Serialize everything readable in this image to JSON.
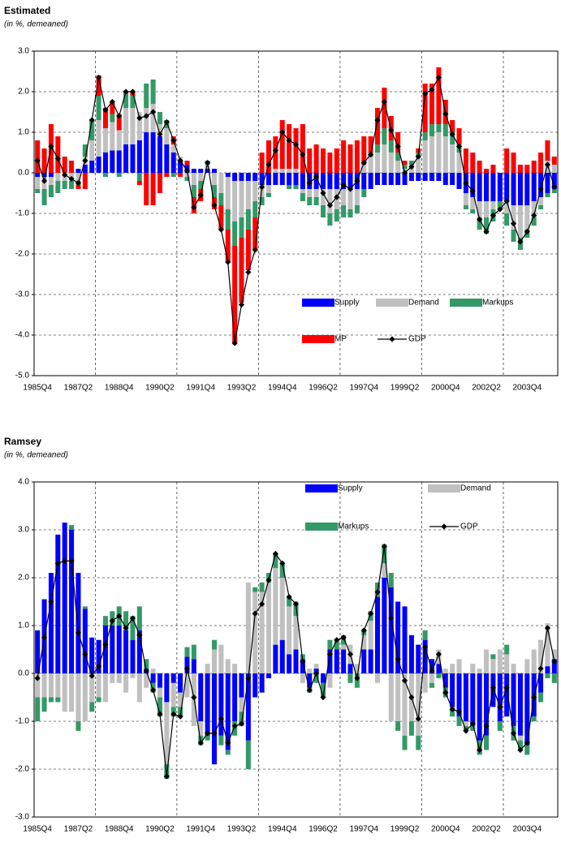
{
  "chart_data": [
    {
      "type": "bar",
      "stacked": true,
      "title": "Estimated",
      "subtitle": "(in %, demeaned)",
      "legend": "lower right",
      "grid": true,
      "categories": [
        "1985Q4",
        null,
        null,
        null,
        null,
        null,
        "1987Q2",
        null,
        null,
        null,
        null,
        null,
        "1988Q4",
        null,
        null,
        null,
        null,
        null,
        "1990Q2",
        null,
        null,
        null,
        null,
        null,
        "1991Q4",
        null,
        null,
        null,
        null,
        null,
        "1993Q2",
        null,
        null,
        null,
        null,
        null,
        "1994Q4",
        null,
        null,
        null,
        null,
        null,
        "1996Q2",
        null,
        null,
        null,
        null,
        null,
        "1997Q4",
        null,
        null,
        null,
        null,
        null,
        "1999Q2",
        null,
        null,
        null,
        null,
        null,
        "2000Q4",
        null,
        null,
        null,
        null,
        null,
        "2002Q2",
        null,
        null,
        null,
        null,
        null,
        "2003Q4",
        null,
        null,
        null,
        null
      ],
      "ylim": [
        -5,
        3
      ],
      "yticks": [
        {
          "value": -5,
          "label": "-5.0"
        },
        {
          "value": -4,
          "label": "-4.0"
        },
        {
          "value": -3,
          "label": "-3.0"
        },
        {
          "value": -2,
          "label": "-2.0"
        },
        {
          "value": -1,
          "label": "-1.0"
        },
        {
          "value": 0,
          "label": "0.0"
        },
        {
          "value": 1,
          "label": "1.0"
        },
        {
          "value": 2,
          "label": "2.0"
        },
        {
          "value": 3,
          "label": "3.0"
        }
      ],
      "series": [
        {
          "name": "Supply",
          "color": "#0000ff",
          "values": [
            -0.1,
            -0.1,
            -0.1,
            0,
            0,
            0,
            0.1,
            0.2,
            0.3,
            0.4,
            0.5,
            0.55,
            0.55,
            0.7,
            0.7,
            0.8,
            1.0,
            1.0,
            0.9,
            0.7,
            0.5,
            0.3,
            0.2,
            0.1,
            0.1,
            0.1,
            0.1,
            0,
            -0.1,
            -0.2,
            -0.2,
            -0.2,
            -0.2,
            -0.3,
            -0.3,
            -0.3,
            -0.3,
            -0.3,
            -0.3,
            -0.4,
            -0.4,
            -0.4,
            -0.4,
            -0.4,
            -0.4,
            -0.4,
            -0.4,
            -0.4,
            -0.4,
            -0.4,
            -0.3,
            -0.3,
            -0.3,
            -0.3,
            -0.3,
            -0.2,
            -0.2,
            -0.2,
            -0.2,
            -0.2,
            -0.3,
            -0.3,
            -0.4,
            -0.5,
            -0.6,
            -0.7,
            -0.7,
            -0.7,
            -0.7,
            -0.7,
            -0.8,
            -0.8,
            -0.8,
            -0.7,
            -0.6,
            -0.5,
            -0.4
          ]
        },
        {
          "name": "Demand",
          "color": "#c0c0c0",
          "values": [
            -0.3,
            -0.3,
            -0.2,
            -0.2,
            -0.2,
            -0.2,
            -0.2,
            0.2,
            0.5,
            0.9,
            0.6,
            0.7,
            0.5,
            0.9,
            0.9,
            0.7,
            0.6,
            0.7,
            0.3,
            0.4,
            0.2,
            0.1,
            -0.1,
            -0.3,
            -0.2,
            0.1,
            -0.3,
            -0.5,
            -0.8,
            -1.0,
            -0.9,
            -0.7,
            -0.5,
            -0.3,
            -0.2,
            0.1,
            0.1,
            0.1,
            0.1,
            -0.1,
            -0.2,
            -0.2,
            -0.4,
            -0.6,
            -0.5,
            -0.4,
            -0.5,
            -0.4,
            0.2,
            0.4,
            0.5,
            0.7,
            0.5,
            0.3,
            0.1,
            0.2,
            0.4,
            0.8,
            0.9,
            1.0,
            0.9,
            0.7,
            0.5,
            -0.3,
            -0.3,
            -0.4,
            -0.4,
            -0.2,
            0,
            -0.3,
            -0.6,
            -0.8,
            -0.6,
            -0.4,
            -0.2,
            0.3,
            0.2
          ]
        },
        {
          "name": "Markups",
          "color": "#339966",
          "values": [
            -0.1,
            -0.4,
            -0.3,
            -0.3,
            -0.2,
            -0.2,
            -0.1,
            0.3,
            0.5,
            0.6,
            -0.1,
            0.2,
            -0.1,
            0.4,
            0.3,
            -0.2,
            0.6,
            0.6,
            0.3,
            0.2,
            -0.1,
            0,
            -0.1,
            -0.3,
            -0.2,
            0.1,
            -0.3,
            -0.3,
            -0.5,
            -0.6,
            -0.5,
            -0.5,
            -0.4,
            -0.2,
            -0.1,
            0,
            0,
            -0.1,
            -0.1,
            -0.2,
            -0.2,
            -0.2,
            -0.3,
            -0.3,
            -0.3,
            -0.3,
            -0.2,
            -0.2,
            -0.2,
            0.1,
            0.2,
            0.4,
            0.3,
            0.2,
            0.1,
            0.1,
            0.1,
            0.2,
            0.3,
            0.2,
            0.3,
            0.3,
            0.2,
            -0.1,
            -0.1,
            -0.3,
            -0.4,
            -0.3,
            -0.2,
            -0.3,
            -0.3,
            -0.3,
            -0.2,
            -0.2,
            -0.1,
            -0.1,
            -0.1
          ]
        },
        {
          "name": "MP",
          "color": "#ff0000",
          "values": [
            0.8,
            0.6,
            1.2,
            0.9,
            0.4,
            0.3,
            -0.1,
            -0.4,
            0,
            0.5,
            0.5,
            0.3,
            0.4,
            0,
            0.1,
            -0.1,
            -0.8,
            -0.8,
            -0.5,
            -0.1,
            0.2,
            -0.1,
            0.1,
            -0.4,
            -0.3,
            0,
            -0.3,
            -0.6,
            -0.8,
            -2.4,
            -1.6,
            -1.0,
            -0.8,
            0.5,
            0.8,
            0.8,
            1.2,
            1.1,
            1.0,
            1.2,
            0.6,
            0.7,
            0.6,
            0.5,
            0.6,
            0.8,
            0.7,
            0.8,
            0.7,
            0.4,
            0.9,
            1.0,
            0.6,
            0.5,
            0.1,
            0,
            0.1,
            1.2,
            1.0,
            1.4,
            0.6,
            0.3,
            0.4,
            0.6,
            0.5,
            0.3,
            0.1,
            0.2,
            0,
            0.6,
            0.5,
            0.2,
            0.2,
            0.3,
            0.5,
            0.5,
            0.2
          ]
        },
        {
          "name": "GDP",
          "color": "#000000",
          "type": "line",
          "values": [
            0.3,
            -0.2,
            0.65,
            0.35,
            -0.05,
            -0.15,
            -0.25,
            0.3,
            1.3,
            2.35,
            1.55,
            1.75,
            1.4,
            2.0,
            2.0,
            1.35,
            1.4,
            1.5,
            0.95,
            1.25,
            0.8,
            0.3,
            0.05,
            -0.85,
            -0.55,
            0.25,
            -0.8,
            -1.4,
            -2.2,
            -4.2,
            -3.25,
            -2.45,
            -1.9,
            -0.35,
            0.2,
            0.55,
            1.0,
            0.8,
            0.7,
            0.45,
            -0.25,
            -0.1,
            -0.5,
            -0.8,
            -0.6,
            -0.3,
            -0.4,
            -0.2,
            0.25,
            0.45,
            1.3,
            1.75,
            1.05,
            0.65,
            0,
            0.15,
            0.4,
            1.95,
            2.05,
            2.35,
            1.45,
            0.95,
            0.65,
            -0.25,
            -0.45,
            -1.15,
            -1.45,
            -1.05,
            -0.9,
            -0.7,
            -1.25,
            -1.7,
            -1.45,
            -1.05,
            -0.4,
            0.2,
            -0.35
          ]
        }
      ]
    },
    {
      "type": "bar",
      "stacked": true,
      "title": "Ramsey",
      "subtitle": "(in %, demeaned)",
      "legend": "upper right",
      "grid": true,
      "categories": [
        "1985Q4",
        null,
        null,
        null,
        null,
        null,
        "1987Q2",
        null,
        null,
        null,
        null,
        null,
        "1988Q4",
        null,
        null,
        null,
        null,
        null,
        "1990Q2",
        null,
        null,
        null,
        null,
        null,
        "1991Q4",
        null,
        null,
        null,
        null,
        null,
        "1993Q2",
        null,
        null,
        null,
        null,
        null,
        "1994Q4",
        null,
        null,
        null,
        null,
        null,
        "1996Q2",
        null,
        null,
        null,
        null,
        null,
        "1997Q4",
        null,
        null,
        null,
        null,
        null,
        "1999Q2",
        null,
        null,
        null,
        null,
        null,
        "2000Q4",
        null,
        null,
        null,
        null,
        null,
        "2002Q2",
        null,
        null,
        null,
        null,
        null,
        "2003Q4",
        null,
        null,
        null,
        null
      ],
      "ylim": [
        -3,
        4
      ],
      "yticks": [
        {
          "value": -3,
          "label": "-3.0"
        },
        {
          "value": -2,
          "label": "-2.0"
        },
        {
          "value": -1,
          "label": "-1.0"
        },
        {
          "value": 0,
          "label": "0.0"
        },
        {
          "value": 1,
          "label": "1.0"
        },
        {
          "value": 2,
          "label": "2.0"
        },
        {
          "value": 3,
          "label": "3.0"
        },
        {
          "value": 4,
          "label": "4.0"
        }
      ],
      "series": [
        {
          "name": "Supply",
          "color": "#0000ff",
          "values": [
            0.9,
            1.55,
            2.1,
            2.9,
            3.15,
            3.0,
            2.1,
            1.35,
            0.75,
            0.7,
            1.0,
            1.0,
            1.0,
            0.9,
            0.7,
            0.9,
            0.1,
            -0.2,
            -0.3,
            -0.6,
            -0.2,
            -0.4,
            0.35,
            0.3,
            -1.0,
            -1.3,
            -1.9,
            -1.3,
            -1.6,
            -1.0,
            -0.5,
            -1.4,
            -0.5,
            -0.4,
            -0.1,
            0.6,
            0.7,
            0.4,
            0.5,
            0.3,
            -0.3,
            0.1,
            -0.2,
            0.5,
            0.5,
            0.5,
            0.2,
            0,
            0.5,
            0.5,
            1.6,
            2.0,
            1.8,
            1.5,
            1.4,
            0.8,
            0.6,
            0.7,
            0.3,
            0.2,
            -0.3,
            -0.7,
            -0.9,
            -1.0,
            -1.1,
            -1.4,
            -1.3,
            -0.7,
            -1.0,
            -0.9,
            -1.1,
            -1.3,
            -1.5,
            -0.9,
            -0.4,
            0.15,
            0.3
          ]
        },
        {
          "name": "Demand",
          "color": "#c0c0c0",
          "values": [
            -0.5,
            -0.5,
            -0.5,
            -0.5,
            -0.8,
            -0.8,
            -1.0,
            -1.0,
            -0.6,
            -0.5,
            -0.6,
            -0.2,
            -0.2,
            -0.4,
            -0.1,
            -0.6,
            -0.3,
            0.1,
            -0.2,
            -1.3,
            -0.5,
            -0.3,
            -0.5,
            -1.1,
            -0.3,
            0.2,
            0.5,
            0.6,
            0.3,
            0.2,
            -0.3,
            1.9,
            1.7,
            1.7,
            1.9,
            1.6,
            1.3,
            1.0,
            0.7,
            -0.2,
            0.1,
            0.1,
            0,
            -0.3,
            0,
            0.1,
            0.4,
            0.2,
            0.3,
            0.6,
            -0.2,
            0.3,
            -1.0,
            -1.0,
            -1.3,
            -1.0,
            -1.3,
            -0.4,
            -0.2,
            0.3,
            0.1,
            0.2,
            0.3,
            -0.1,
            0.2,
            0.1,
            0.5,
            0.3,
            0.5,
            0.4,
            0.2,
            -0.1,
            0.3,
            0.5,
            0.7,
            0.9,
            0.2
          ]
        },
        {
          "name": "Markups",
          "color": "#339966",
          "values": [
            -0.5,
            -0.3,
            -0.1,
            -0.1,
            0,
            0.1,
            -0.2,
            0.05,
            -0.2,
            -0.1,
            0.2,
            0.3,
            0.4,
            0.4,
            0.5,
            0.5,
            0.2,
            -0.2,
            -0.4,
            -0.3,
            -0.2,
            -0.2,
            0.2,
            0.3,
            -0.2,
            -0.1,
            0.2,
            -0.2,
            -0.1,
            -0.3,
            -0.3,
            -0.6,
            0.1,
            0.2,
            0.2,
            0.3,
            0.3,
            0.2,
            0.3,
            0.1,
            -0.1,
            -0.2,
            -0.3,
            0.2,
            0.2,
            0.2,
            -0.2,
            -0.3,
            0.1,
            0.2,
            0.3,
            0.4,
            0.3,
            -0.2,
            -0.3,
            -0.3,
            -0.3,
            0.2,
            -0.1,
            -0.1,
            -0.2,
            -0.2,
            -0.2,
            -0.1,
            -0.1,
            -0.3,
            -0.3,
            0.1,
            -0.2,
            0.2,
            -0.3,
            -0.2,
            -0.2,
            -0.1,
            -0.2,
            -0.1,
            -0.2
          ]
        },
        {
          "name": "GDP",
          "color": "#000000",
          "type": "line",
          "values": [
            -0.1,
            0.75,
            1.5,
            2.3,
            2.35,
            2.35,
            0.85,
            0.4,
            -0.05,
            0.15,
            0.6,
            1.1,
            1.2,
            0.95,
            1.15,
            0.8,
            0.05,
            -0.35,
            -0.85,
            -2.15,
            -0.85,
            -0.9,
            0.1,
            -0.5,
            -1.45,
            -1.25,
            -1.25,
            -0.95,
            -1.45,
            -1.1,
            -1.05,
            -0.1,
            1.25,
            1.45,
            1.95,
            2.5,
            2.3,
            1.6,
            1.45,
            0.25,
            -0.35,
            0,
            -0.5,
            0.4,
            0.7,
            0.75,
            0.4,
            -0.1,
            0.9,
            1.25,
            1.7,
            2.65,
            1.15,
            0.3,
            -0.15,
            -0.5,
            -0.95,
            0.55,
            0.05,
            0.4,
            -0.4,
            -0.75,
            -0.8,
            -1.2,
            -1.05,
            -1.6,
            -1.1,
            -0.3,
            -0.7,
            -0.3,
            -1.25,
            -1.6,
            -1.45,
            -0.5,
            0.1,
            0.95,
            0.25
          ]
        }
      ]
    }
  ]
}
